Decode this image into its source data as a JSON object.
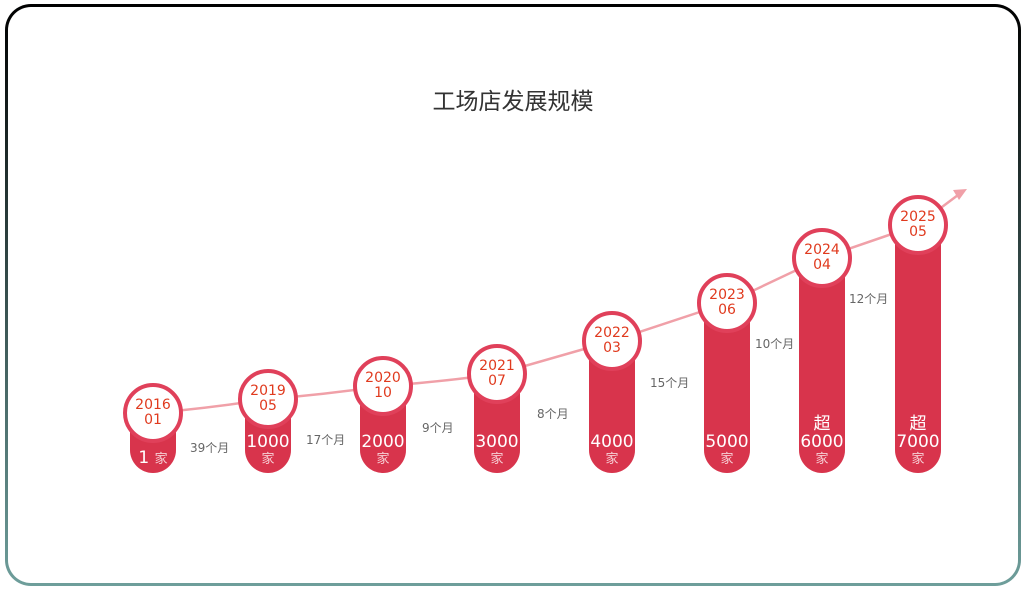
{
  "title": "工场店发展规模",
  "chart_data": {
    "type": "bar",
    "title": "工场店发展规模",
    "categories": [
      "2016 01",
      "2019 05",
      "2020 10",
      "2021 07",
      "2022 03",
      "2023 06",
      "2024 04",
      "2025 05"
    ],
    "milestones": [
      {
        "year": "2016",
        "month": "01",
        "prefix": "",
        "count": "1",
        "unit": "家"
      },
      {
        "year": "2019",
        "month": "05",
        "prefix": "",
        "count": "1000",
        "unit": "家"
      },
      {
        "year": "2020",
        "month": "10",
        "prefix": "",
        "count": "2000",
        "unit": "家"
      },
      {
        "year": "2021",
        "month": "07",
        "prefix": "",
        "count": "3000",
        "unit": "家"
      },
      {
        "year": "2022",
        "month": "03",
        "prefix": "",
        "count": "4000",
        "unit": "家"
      },
      {
        "year": "2023",
        "month": "06",
        "prefix": "",
        "count": "5000",
        "unit": "家"
      },
      {
        "year": "2024",
        "month": "04",
        "prefix": "超",
        "count": "6000",
        "unit": "家"
      },
      {
        "year": "2025",
        "month": "05",
        "prefix": "超",
        "count": "7000",
        "unit": "家"
      }
    ],
    "values": [
      1,
      1000,
      2000,
      3000,
      4000,
      5000,
      6000,
      7000
    ],
    "intervals": [
      "39个月",
      "17个月",
      "9个月",
      "8个月",
      "15个月",
      "10个月",
      "12个月"
    ],
    "colors": {
      "bar": "#d8344c",
      "circle_border": "#e0405a",
      "date_text": "#e03a1e",
      "trend_line": "#f0a0a8"
    }
  }
}
